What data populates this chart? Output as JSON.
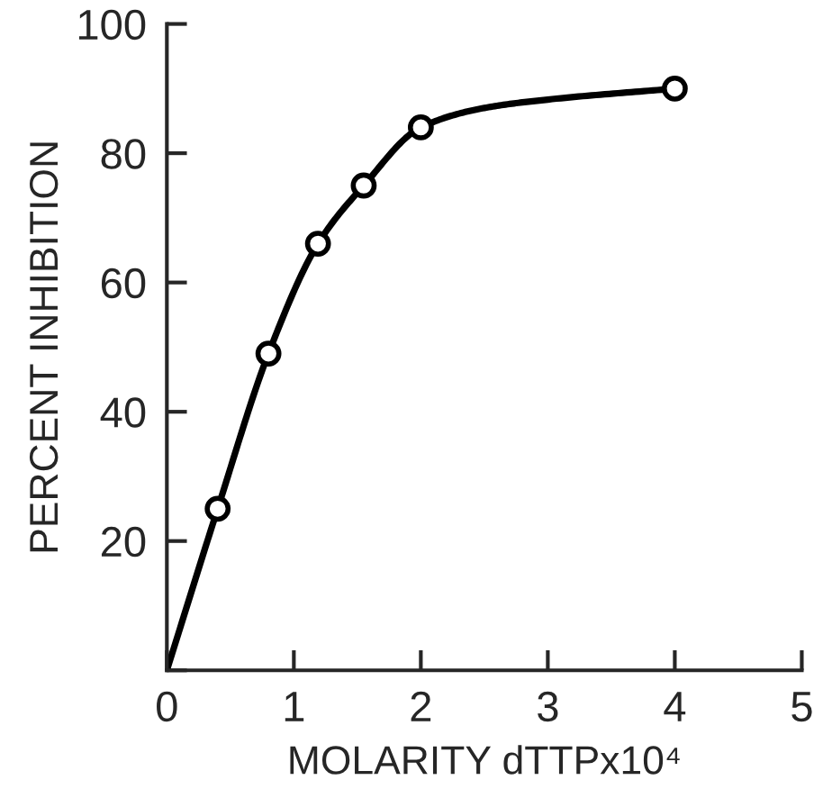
{
  "chart_data": {
    "type": "scatter",
    "xlabel": "MOLARITY dTTPx10⁴",
    "ylabel": "PERCENT INHIBITION",
    "xlim": [
      0,
      5
    ],
    "xticks": [
      0,
      1,
      2,
      3,
      4,
      5
    ],
    "ylim": [
      0,
      100
    ],
    "yticks": [
      {
        "value": 0,
        "label": null
      },
      20,
      40,
      60,
      80,
      100
    ],
    "grid": false,
    "marker": "circle",
    "series": [
      {
        "type": "line",
        "color": "#000000",
        "marker": "none",
        "line_style": "solid",
        "x": [
          0,
          0.4,
          0.8,
          1.19,
          1.55,
          2.0,
          2.5,
          3.0,
          4.0
        ],
        "values": [
          0,
          25,
          49,
          66,
          75,
          84,
          87,
          88.3,
          90
        ]
      },
      {
        "color": "#000000",
        "x": [
          0.4,
          0.8,
          1.19,
          1.55,
          2.0,
          4.0
        ],
        "values": [
          25,
          49,
          66,
          75,
          84,
          90
        ]
      }
    ]
  }
}
